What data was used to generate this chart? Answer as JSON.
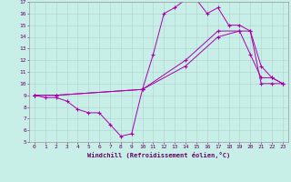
{
  "xlabel": "Windchill (Refroidissement éolien,°C)",
  "bg_color": "#c8eee8",
  "line_color": "#aa00aa",
  "xlim": [
    -0.5,
    23.5
  ],
  "ylim": [
    5,
    17
  ],
  "xticks": [
    0,
    1,
    2,
    3,
    4,
    5,
    6,
    7,
    8,
    9,
    10,
    11,
    12,
    13,
    14,
    15,
    16,
    17,
    18,
    19,
    20,
    21,
    22,
    23
  ],
  "yticks": [
    5,
    6,
    7,
    8,
    9,
    10,
    11,
    12,
    13,
    14,
    15,
    16,
    17
  ],
  "line1_x": [
    0,
    1,
    2,
    3,
    4,
    5,
    6,
    7,
    8,
    9,
    10,
    11,
    12,
    13,
    14,
    15,
    16,
    17,
    18,
    19,
    20,
    21,
    22,
    23
  ],
  "line1_y": [
    9,
    8.8,
    8.8,
    8.5,
    7.8,
    7.5,
    7.5,
    6.5,
    5.5,
    5.7,
    9.5,
    12.5,
    16.0,
    16.5,
    17.2,
    17.2,
    16.0,
    16.5,
    15.0,
    15.0,
    14.5,
    11.5,
    10.5,
    10.0
  ],
  "line2_x": [
    0,
    2,
    10,
    14,
    17,
    19,
    20,
    21,
    22,
    23
  ],
  "line2_y": [
    9,
    9,
    9.5,
    11.5,
    14.0,
    14.5,
    12.5,
    10.5,
    10.5,
    10.0
  ],
  "line3_x": [
    0,
    2,
    10,
    14,
    17,
    19,
    20,
    21,
    22,
    23
  ],
  "line3_y": [
    9,
    9,
    9.5,
    12.0,
    14.5,
    14.5,
    14.5,
    10.0,
    10.0,
    10.0
  ]
}
